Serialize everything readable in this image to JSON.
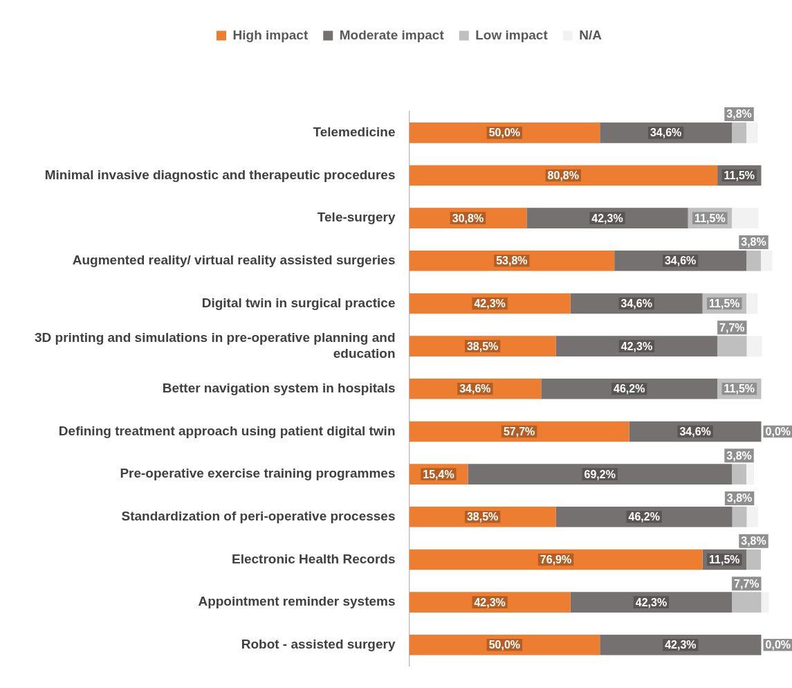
{
  "chart_data": {
    "type": "bar",
    "orientation": "horizontal",
    "stacked": true,
    "legend": "top",
    "tick_labels": "y",
    "categories": [
      "Telemedicine",
      "Minimal invasive diagnostic and therapeutic procedures",
      "Tele-surgery",
      "Augmented reality/ virtual reality assisted surgeries",
      "Digital twin in surgical practice",
      "3D printing and simulations in pre-operative planning and education",
      "Better navigation system in hospitals",
      "Defining treatment approach using patient digital twin",
      "Pre-operative exercise training programmes",
      "Standardization of peri-operative processes",
      "Electronic Health Records",
      "Appointment reminder systems",
      "Robot - assisted surgery"
    ],
    "series": [
      {
        "name": "High impact",
        "color": "#ed7d31",
        "values": [
          50.0,
          80.8,
          30.8,
          53.8,
          42.3,
          38.5,
          34.6,
          57.7,
          15.4,
          38.5,
          76.9,
          42.3,
          50.0
        ],
        "value_labels": [
          "50,0%",
          "80,8%",
          "30,8%",
          "53,8%",
          "42,3%",
          "38,5%",
          "34,6%",
          "57,7%",
          "15,4%",
          "38,5%",
          "76,9%",
          "42,3%",
          "50,0%"
        ]
      },
      {
        "name": "Moderate impact",
        "color": "#767171",
        "values": [
          34.6,
          11.5,
          42.3,
          34.6,
          34.6,
          42.3,
          46.2,
          34.6,
          69.2,
          46.2,
          11.5,
          42.3,
          42.3
        ],
        "value_labels": [
          "34,6%",
          "11,5%",
          "42,3%",
          "34,6%",
          "34,6%",
          "42,3%",
          "46,2%",
          "34,6%",
          "69,2%",
          "46,2%",
          "11,5%",
          "42,3%",
          "42,3%"
        ]
      },
      {
        "name": "Low impact",
        "color": "#bfbfbf",
        "values": [
          3.8,
          0,
          11.5,
          3.8,
          11.5,
          7.7,
          11.5,
          0.0,
          3.8,
          3.8,
          3.8,
          7.7,
          0.0
        ],
        "value_labels": [
          "3,8%",
          null,
          "11,5%",
          "3,8%",
          "11,5%",
          "7,7%",
          "11,5%",
          "0,0%",
          "3,8%",
          "3,8%",
          "3,8%",
          "7,7%",
          "0,0%"
        ]
      },
      {
        "name": "N/A",
        "color": "#f2f2f2",
        "values": [
          3,
          0,
          7,
          3,
          3,
          4,
          0,
          0,
          2,
          3,
          0,
          2,
          0
        ],
        "value_labels": [
          null,
          null,
          null,
          null,
          null,
          null,
          null,
          null,
          null,
          null,
          null,
          null,
          null
        ]
      }
    ]
  }
}
